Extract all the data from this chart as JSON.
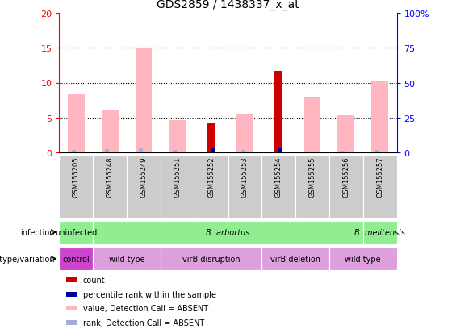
{
  "title": "GDS2859 / 1438337_x_at",
  "samples": [
    "GSM155205",
    "GSM155248",
    "GSM155249",
    "GSM155251",
    "GSM155252",
    "GSM155253",
    "GSM155254",
    "GSM155255",
    "GSM155256",
    "GSM155257"
  ],
  "pink_bars": [
    8.5,
    6.2,
    15.0,
    4.6,
    null,
    5.5,
    null,
    8.0,
    5.3,
    10.2
  ],
  "light_blue_bars": [
    0.4,
    0.5,
    0.6,
    0.4,
    0.5,
    0.4,
    null,
    null,
    0.3,
    0.4
  ],
  "red_bars": [
    null,
    null,
    null,
    null,
    4.2,
    null,
    11.7,
    null,
    null,
    null
  ],
  "blue_bars": [
    null,
    null,
    null,
    null,
    0.6,
    null,
    0.65,
    null,
    null,
    null
  ],
  "ylim_left": [
    0,
    20
  ],
  "ylim_right": [
    0,
    100
  ],
  "yticks_left": [
    0,
    5,
    10,
    15,
    20
  ],
  "yticks_right": [
    0,
    25,
    50,
    75,
    100
  ],
  "ytick_labels_right": [
    "0",
    "25",
    "50",
    "75",
    "100%"
  ],
  "infection_data": [
    {
      "label": "uninfected",
      "start": 0,
      "end": 1,
      "color": "#90EE90"
    },
    {
      "label": "B. arbortus",
      "start": 1,
      "end": 9,
      "color": "#90EE90"
    },
    {
      "label": "B. melitensis",
      "start": 9,
      "end": 10,
      "color": "#90EE90"
    }
  ],
  "genotype_data": [
    {
      "label": "control",
      "start": 0,
      "end": 1,
      "color": "#CC44CC"
    },
    {
      "label": "wild type",
      "start": 1,
      "end": 3,
      "color": "#DDA0DD"
    },
    {
      "label": "virB disruption",
      "start": 3,
      "end": 6,
      "color": "#DDA0DD"
    },
    {
      "label": "virB deletion",
      "start": 6,
      "end": 8,
      "color": "#DDA0DD"
    },
    {
      "label": "wild type",
      "start": 8,
      "end": 10,
      "color": "#DDA0DD"
    }
  ],
  "pink_color": "#FFB6C1",
  "light_blue_color": "#AAAADD",
  "red_color": "#CC0000",
  "blue_color": "#000099",
  "sample_bg": "#CCCCCC",
  "legend_items": [
    {
      "color": "#CC0000",
      "label": "count"
    },
    {
      "color": "#000099",
      "label": "percentile rank within the sample"
    },
    {
      "color": "#FFB6C1",
      "label": "value, Detection Call = ABSENT"
    },
    {
      "color": "#AAAADD",
      "label": "rank, Detection Call = ABSENT"
    }
  ]
}
